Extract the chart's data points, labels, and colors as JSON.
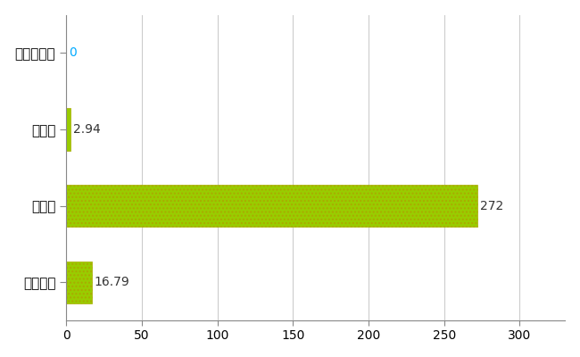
{
  "categories": [
    "上富良野町",
    "県平均",
    "県最大",
    "全国平均"
  ],
  "values": [
    0,
    2.94,
    272,
    16.79
  ],
  "bar_color": "#99cc00",
  "bar_edge_color": "#aaaa00",
  "value_labels": [
    "0",
    "2.94",
    "272",
    "16.79"
  ],
  "value_label_color_default": "#333333",
  "value_label_color_zero": "#00aaff",
  "xlim": [
    0,
    330
  ],
  "xticks": [
    0,
    50,
    100,
    150,
    200,
    250,
    300
  ],
  "grid_color": "#cccccc",
  "background_color": "#ffffff",
  "label_fontsize": 11,
  "value_fontsize": 10,
  "tick_fontsize": 10,
  "bar_height": 0.55
}
